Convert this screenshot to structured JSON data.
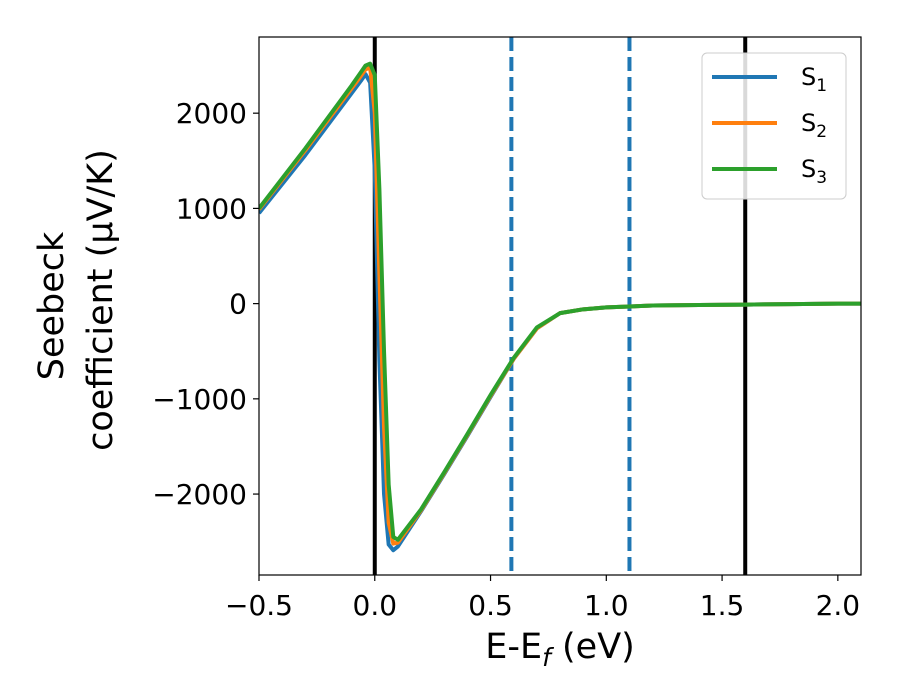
{
  "chart_data": {
    "type": "line",
    "xlabel": {
      "main": "E-E",
      "sub": "f",
      "unit": " (eV)"
    },
    "ylabel": {
      "line1": "Seebeck",
      "line2": "coefficient  (μV/K)"
    },
    "xlim": [
      -0.5,
      2.1
    ],
    "ylim": [
      -2850,
      2800
    ],
    "x_ticks": [
      -0.5,
      0.0,
      0.5,
      1.0,
      1.5,
      2.0
    ],
    "x_tick_labels": [
      "−0.5",
      "0.0",
      "0.5",
      "1.0",
      "1.5",
      "2.0"
    ],
    "y_ticks": [
      -2000,
      -1000,
      0,
      1000,
      2000
    ],
    "y_tick_labels": [
      "−2000",
      "−1000",
      "0",
      "1000",
      "2000"
    ],
    "grid": false,
    "legend_position": "top-right",
    "vlines": [
      {
        "x": 0.0,
        "style": "solid",
        "color": "#000000"
      },
      {
        "x": 1.6,
        "style": "solid",
        "color": "#000000"
      },
      {
        "x": 0.59,
        "style": "dashed",
        "color": "#1f77b4"
      },
      {
        "x": 1.1,
        "style": "dashed",
        "color": "#1f77b4"
      }
    ],
    "series": [
      {
        "name": "S",
        "sub": "1",
        "color": "#1f77b4",
        "x": [
          -0.5,
          -0.3,
          -0.1,
          -0.06,
          -0.04,
          -0.02,
          0.0,
          0.02,
          0.04,
          0.06,
          0.08,
          0.1,
          0.2,
          0.3,
          0.4,
          0.5,
          0.6,
          0.7,
          0.8,
          0.9,
          1.0,
          1.1,
          1.2,
          1.4,
          1.6,
          1.8,
          2.0,
          2.1
        ],
        "y": [
          950,
          1560,
          2210,
          2340,
          2410,
          2320,
          1400,
          -600,
          -2000,
          -2530,
          -2590,
          -2550,
          -2180,
          -1790,
          -1390,
          -980,
          -580,
          -260,
          -100,
          -60,
          -40,
          -30,
          -20,
          -15,
          -10,
          -5,
          0,
          0
        ]
      },
      {
        "name": "S",
        "sub": "2",
        "color": "#ff7f0e",
        "x": [
          -0.5,
          -0.3,
          -0.1,
          -0.06,
          -0.04,
          -0.02,
          0.0,
          0.02,
          0.04,
          0.06,
          0.08,
          0.1,
          0.2,
          0.3,
          0.4,
          0.5,
          0.6,
          0.7,
          0.8,
          0.9,
          1.0,
          1.1,
          1.2,
          1.4,
          1.6,
          1.8,
          2.0,
          2.1
        ],
        "y": [
          990,
          1610,
          2260,
          2390,
          2460,
          2480,
          2000,
          300,
          -1300,
          -2300,
          -2520,
          -2510,
          -2170,
          -1780,
          -1380,
          -970,
          -580,
          -260,
          -100,
          -60,
          -40,
          -30,
          -20,
          -15,
          -10,
          -5,
          0,
          0
        ]
      },
      {
        "name": "S",
        "sub": "3",
        "color": "#2ca02c",
        "x": [
          -0.5,
          -0.3,
          -0.1,
          -0.06,
          -0.04,
          -0.02,
          0.0,
          0.02,
          0.04,
          0.06,
          0.08,
          0.1,
          0.2,
          0.3,
          0.4,
          0.5,
          0.6,
          0.7,
          0.8,
          0.9,
          1.0,
          1.1,
          1.2,
          1.4,
          1.6,
          1.8,
          2.0,
          2.1
        ],
        "y": [
          1000,
          1630,
          2290,
          2430,
          2500,
          2520,
          2400,
          1200,
          -500,
          -1900,
          -2450,
          -2480,
          -2160,
          -1770,
          -1370,
          -960,
          -570,
          -250,
          -100,
          -60,
          -40,
          -30,
          -20,
          -15,
          -10,
          -5,
          0,
          0
        ]
      }
    ]
  }
}
